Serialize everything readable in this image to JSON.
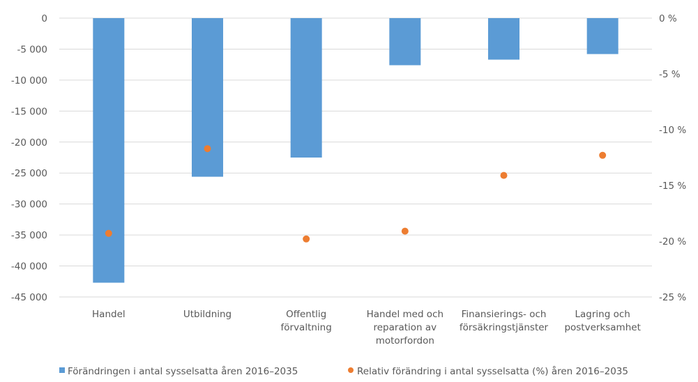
{
  "chart_data": {
    "type": "bar",
    "categories": [
      [
        "Handel"
      ],
      [
        "Utbildning"
      ],
      [
        "Offentlig",
        "förvaltning"
      ],
      [
        "Handel med och",
        "reparation av",
        "motorfordon"
      ],
      [
        "Finansierings- och",
        "försäkringstjänster"
      ],
      [
        "Lagring och",
        "postverksamhet"
      ]
    ],
    "series": [
      {
        "name": "Förändringen i antal sysselsatta åren 2016–2035",
        "kind": "bar",
        "axis": "left",
        "color": "#5b9bd5",
        "values": [
          -42700,
          -25600,
          -22500,
          -7600,
          -6700,
          -5800
        ]
      },
      {
        "name": "Relativ förändring i antal sysselsatta (%) åren 2016–2035",
        "kind": "marker",
        "axis": "right",
        "color": "#ed7d31",
        "values": [
          -19.3,
          -11.7,
          -19.8,
          -19.1,
          -14.1,
          -12.3
        ]
      }
    ],
    "left_axis": {
      "ylim": [
        -45000,
        0
      ],
      "ticks": [
        0,
        -5000,
        -10000,
        -15000,
        -20000,
        -25000,
        -30000,
        -35000,
        -40000,
        -45000
      ],
      "tick_labels": [
        "0",
        "-5 000",
        "-10 000",
        "-15 000",
        "-20 000",
        "-25 000",
        "-30 000",
        "-35 000",
        "-40 000",
        "-45 000"
      ]
    },
    "right_axis": {
      "ylim": [
        -25,
        0
      ],
      "ticks": [
        0,
        -5,
        -10,
        -15,
        -20,
        -25
      ],
      "tick_labels": [
        "0 %",
        "-5 %",
        "-10 %",
        "-15 %",
        "-20 %",
        "-25 %"
      ]
    },
    "grid": true,
    "legend_position": "bottom",
    "title": "",
    "xlabel": "",
    "ylabel": ""
  }
}
